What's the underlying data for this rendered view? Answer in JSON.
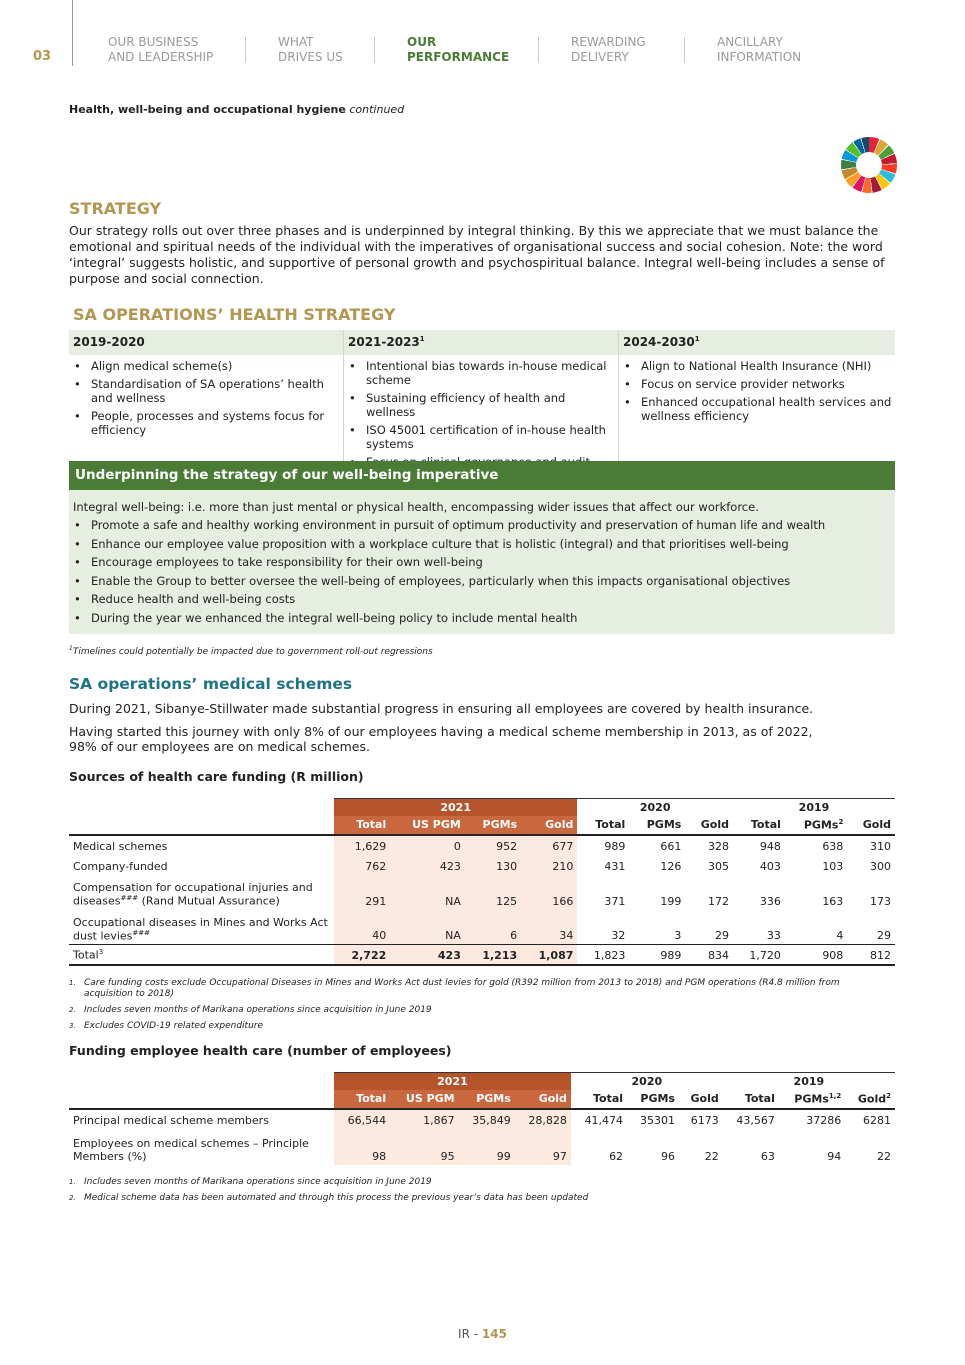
{
  "nav": {
    "page": "03",
    "items": [
      [
        "OUR BUSINESS",
        "AND LEADERSHIP"
      ],
      [
        "WHAT",
        "DRIVES US"
      ],
      [
        "OUR",
        "PERFORMANCE"
      ],
      [
        "REWARDING",
        "DELIVERY"
      ],
      [
        "ANCILLARY",
        "INFORMATION"
      ]
    ],
    "active": 2
  },
  "section": {
    "title": "Health, well-being and occupational hygiene",
    "note": "continued"
  },
  "strategy": {
    "title": "STRATEGY",
    "text": "Our strategy rolls out over three phases and is underpinned by integral thinking. By this we appreciate that we must balance the emotional and spiritual needs of the individual with the imperatives of organisational success and social cohesion. Note: the word ‘integral’ suggests holistic, and supportive of personal growth and psychospiritual balance. Integral well-being includes a sense of purpose and social connection."
  },
  "health_strategy": {
    "title": "SA OPERATIONS’ HEALTH STRATEGY",
    "columns": [
      {
        "heading": "2019-2020",
        "items": [
          "Align medical scheme(s)",
          "Standardisation of SA operations’ health and wellness",
          "People, processes and systems focus for efficiency"
        ]
      },
      {
        "heading": "2021-2023",
        "sup": "1",
        "items": [
          "Intentional bias towards in-house medical scheme",
          "Sustaining efficiency of health and wellness",
          "ISO 45001 certification of in-house health systems",
          "Focus on clinical governance and audit"
        ]
      },
      {
        "heading": "2024-2030",
        "sup": "1",
        "items": [
          "Align to National Health Insurance (NHI)",
          "Focus on service provider networks",
          "Enhanced occupational health services and wellness efficiency"
        ]
      }
    ]
  },
  "underpinning": {
    "title": "Underpinning the strategy of our well-being imperative",
    "intro": "Integral well-being: i.e. more than just mental or physical health, encompassing wider issues that affect our workforce.",
    "bullets": [
      "Promote a safe and healthy working environment in pursuit of optimum productivity and preservation of human life and wealth",
      "Enhance our employee value proposition with a workplace culture that is holistic (integral) and that prioritises well-being",
      "Encourage employees to take responsibility for their own well-being",
      "Enable the Group to better oversee the well-being of employees, particularly when this impacts organisational objectives",
      "Reduce health and well-being costs",
      "During the year we enhanced the integral well-being policy to include mental health"
    ]
  },
  "timeline_note": {
    "sup": "1",
    "text": "Timelines could potentially be impacted due to government roll-out regressions"
  },
  "medical": {
    "title": "SA operations’ medical schemes",
    "paragraphs": [
      "During 2021, Sibanye-Stillwater made substantial progress in ensuring all employees are covered by health insurance.",
      "Having started this journey with only 8% of our employees having a medical scheme membership in 2013, as of 2022, 98% of our employees are on medical schemes."
    ]
  },
  "funding": {
    "title": "Sources of health care funding (R million)",
    "years": [
      "2021",
      "2020",
      "2019"
    ],
    "headers": [
      {
        "text": "Total"
      },
      {
        "text": "US PGM"
      },
      {
        "text": "PGMs"
      },
      {
        "text": "Gold"
      },
      {
        "text": "Total"
      },
      {
        "text": "PGMs"
      },
      {
        "text": "Gold"
      },
      {
        "text": "Total"
      },
      {
        "text": "PGMs",
        "sup": "2"
      },
      {
        "text": "Gold"
      }
    ],
    "rows": [
      {
        "label": [
          {
            "text": "Medical schemes"
          }
        ],
        "values": [
          "1,629",
          "0",
          "952",
          "677",
          "989",
          "661",
          "328",
          "948",
          "638",
          "310"
        ]
      },
      {
        "label": [
          {
            "text": "Company-funded"
          }
        ],
        "values": [
          "762",
          "423",
          "130",
          "210",
          "431",
          "126",
          "305",
          "403",
          "103",
          "300"
        ]
      },
      {
        "label": [
          {
            "text": "Compensation for occupational injuries and diseases"
          },
          {
            "sup": "###"
          },
          {
            "text": " (Rand Mutual Assurance)"
          }
        ],
        "values": [
          "291",
          "NA",
          "125",
          "166",
          "371",
          "199",
          "172",
          "336",
          "163",
          "173"
        ]
      },
      {
        "label": [
          {
            "text": "Occupational diseases in Mines and Works Act dust levies"
          },
          {
            "sup": "###"
          }
        ],
        "values": [
          "40",
          "NA",
          "6",
          "34",
          "32",
          "3",
          "29",
          "33",
          "4",
          "29"
        ]
      },
      {
        "label": [
          {
            "text": "Total"
          },
          {
            "sup": "3"
          }
        ],
        "values": [
          "2,722",
          "423",
          "1,213",
          "1,087",
          "1,823",
          "989",
          "834",
          "1,720",
          "908",
          "812"
        ],
        "bold": true
      }
    ],
    "footnotes": [
      {
        "num": "1.",
        "text": "Care funding costs exclude Occupational Diseases in Mines and Works Act dust levies for gold (R392 million from 2013 to 2018) and PGM operations (R4.8 million from acquisition to 2018)"
      },
      {
        "num": "2.",
        "text": "Includes seven months of Marikana operations since acquisition in June 2019"
      },
      {
        "num": "3.",
        "text": "Excludes COVID-19 related expenditure"
      }
    ]
  },
  "employees": {
    "title": "Funding employee health care (number of employees)",
    "years": [
      "2021",
      "2020",
      "2019"
    ],
    "headers": [
      {
        "text": "Total"
      },
      {
        "text": "US PGM"
      },
      {
        "text": "PGMs"
      },
      {
        "text": "Gold"
      },
      {
        "text": "Total"
      },
      {
        "text": "PGMs"
      },
      {
        "text": "Gold"
      },
      {
        "text": "Total"
      },
      {
        "text": "PGMs",
        "sup": "1,2"
      },
      {
        "text": "Gold",
        "sup": "2"
      }
    ],
    "rows": [
      {
        "label": [
          {
            "text": "Principal medical scheme members"
          }
        ],
        "values": [
          "66,544",
          "1,867",
          "35,849",
          "28,828",
          "41,474",
          "35301",
          "6173",
          "43,567",
          "37286",
          "6281"
        ]
      },
      {
        "label": [
          {
            "text": "Employees on medical schemes – Principle Members (%)"
          }
        ],
        "values": [
          "98",
          "95",
          "99",
          "97",
          "62",
          "96",
          "22",
          "63",
          "94",
          "22"
        ]
      }
    ],
    "footnotes": [
      {
        "num": "1.",
        "text": "Includes seven months of Marikana operations since acquisition in June 2019"
      },
      {
        "num": "2.",
        "text": "Medical scheme data has been automated and through this process the previous year’s data has been updated"
      }
    ]
  },
  "footer": {
    "prefix": "IR - ",
    "page": "145"
  }
}
